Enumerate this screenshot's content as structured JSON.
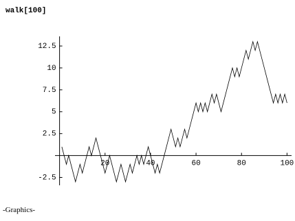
{
  "notebook": {
    "input": "walk[100]",
    "output": "-Graphics-"
  },
  "chart_data": {
    "type": "line",
    "color": "#000000",
    "x": [
      1,
      2,
      3,
      4,
      5,
      6,
      7,
      8,
      9,
      10,
      11,
      12,
      13,
      14,
      15,
      16,
      17,
      18,
      19,
      20,
      21,
      22,
      23,
      24,
      25,
      26,
      27,
      28,
      29,
      30,
      31,
      32,
      33,
      34,
      35,
      36,
      37,
      38,
      39,
      40,
      41,
      42,
      43,
      44,
      45,
      46,
      47,
      48,
      49,
      50,
      51,
      52,
      53,
      54,
      55,
      56,
      57,
      58,
      59,
      60,
      61,
      62,
      63,
      64,
      65,
      66,
      67,
      68,
      69,
      70,
      71,
      72,
      73,
      74,
      75,
      76,
      77,
      78,
      79,
      80,
      81,
      82,
      83,
      84,
      85,
      86,
      87,
      88,
      89,
      90,
      91,
      92,
      93,
      94,
      95,
      96,
      97,
      98,
      99,
      100
    ],
    "values": [
      1,
      0,
      -1,
      0,
      -1,
      -2,
      -3,
      -2,
      -1,
      -2,
      -1,
      0,
      1,
      0,
      1,
      2,
      1,
      0,
      -1,
      -2,
      -1,
      0,
      -1,
      -2,
      -3,
      -2,
      -1,
      -2,
      -3,
      -2,
      -1,
      -2,
      -1,
      0,
      -1,
      0,
      -1,
      0,
      1,
      0,
      -1,
      -2,
      -1,
      -2,
      -1,
      0,
      1,
      2,
      3,
      2,
      1,
      2,
      1,
      2,
      3,
      2,
      3,
      4,
      5,
      6,
      5,
      6,
      5,
      6,
      5,
      6,
      7,
      6,
      7,
      6,
      5,
      6,
      7,
      8,
      9,
      10,
      9,
      10,
      9,
      10,
      11,
      12,
      11,
      12,
      13,
      12,
      13,
      12,
      11,
      10,
      9,
      8,
      7,
      6,
      7,
      6,
      7,
      6,
      7,
      6
    ],
    "xlim": [
      -2,
      102
    ],
    "ylim": [
      -3.4,
      13.6
    ],
    "xticks": [
      20,
      40,
      60,
      80,
      100
    ],
    "yticks": [
      -2.5,
      2.5,
      5,
      7.5,
      10,
      12.5
    ]
  }
}
